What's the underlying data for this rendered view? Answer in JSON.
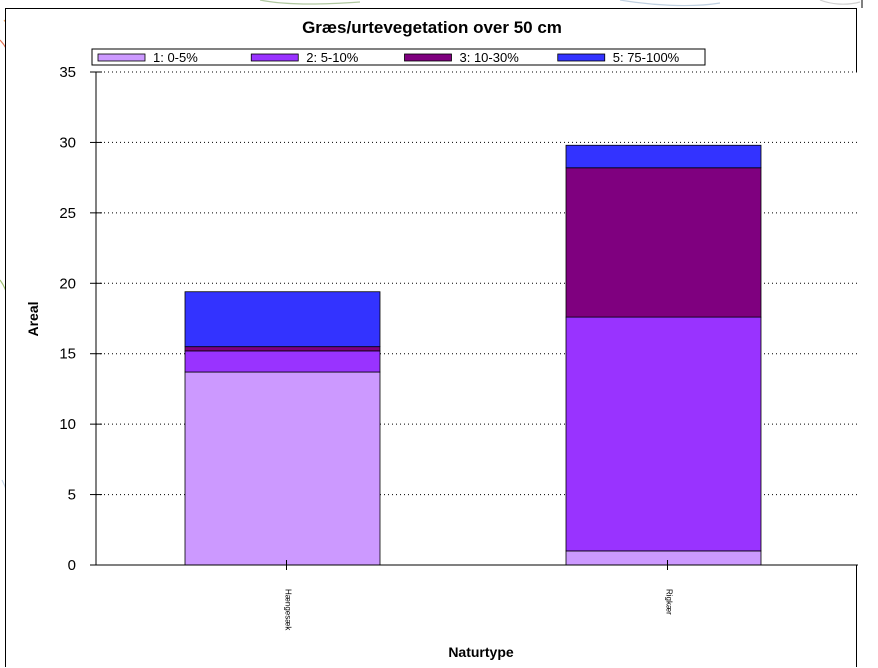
{
  "chart_data": {
    "type": "bar",
    "stacked": true,
    "title": "Græs/urtevegetation over 50 cm",
    "xlabel": "Naturtype",
    "ylabel": "Areal",
    "ylim": [
      0,
      35
    ],
    "yticks": [
      0,
      5,
      10,
      15,
      20,
      25,
      30,
      35
    ],
    "grid": true,
    "legend_position": "top",
    "categories": [
      "Hængesæk",
      "Rigkær"
    ],
    "series": [
      {
        "name": "1: 0-5%",
        "color": "#cc99ff",
        "values": [
          13.7,
          1.0
        ]
      },
      {
        "name": "2: 5-10%",
        "color": "#9933ff",
        "values": [
          1.5,
          16.6
        ]
      },
      {
        "name": "3: 10-30%",
        "color": "#7f007f",
        "values": [
          0.3,
          10.6
        ]
      },
      {
        "name": "5: 75-100%",
        "color": "#3333ff",
        "values": [
          3.9,
          1.6
        ]
      }
    ]
  }
}
